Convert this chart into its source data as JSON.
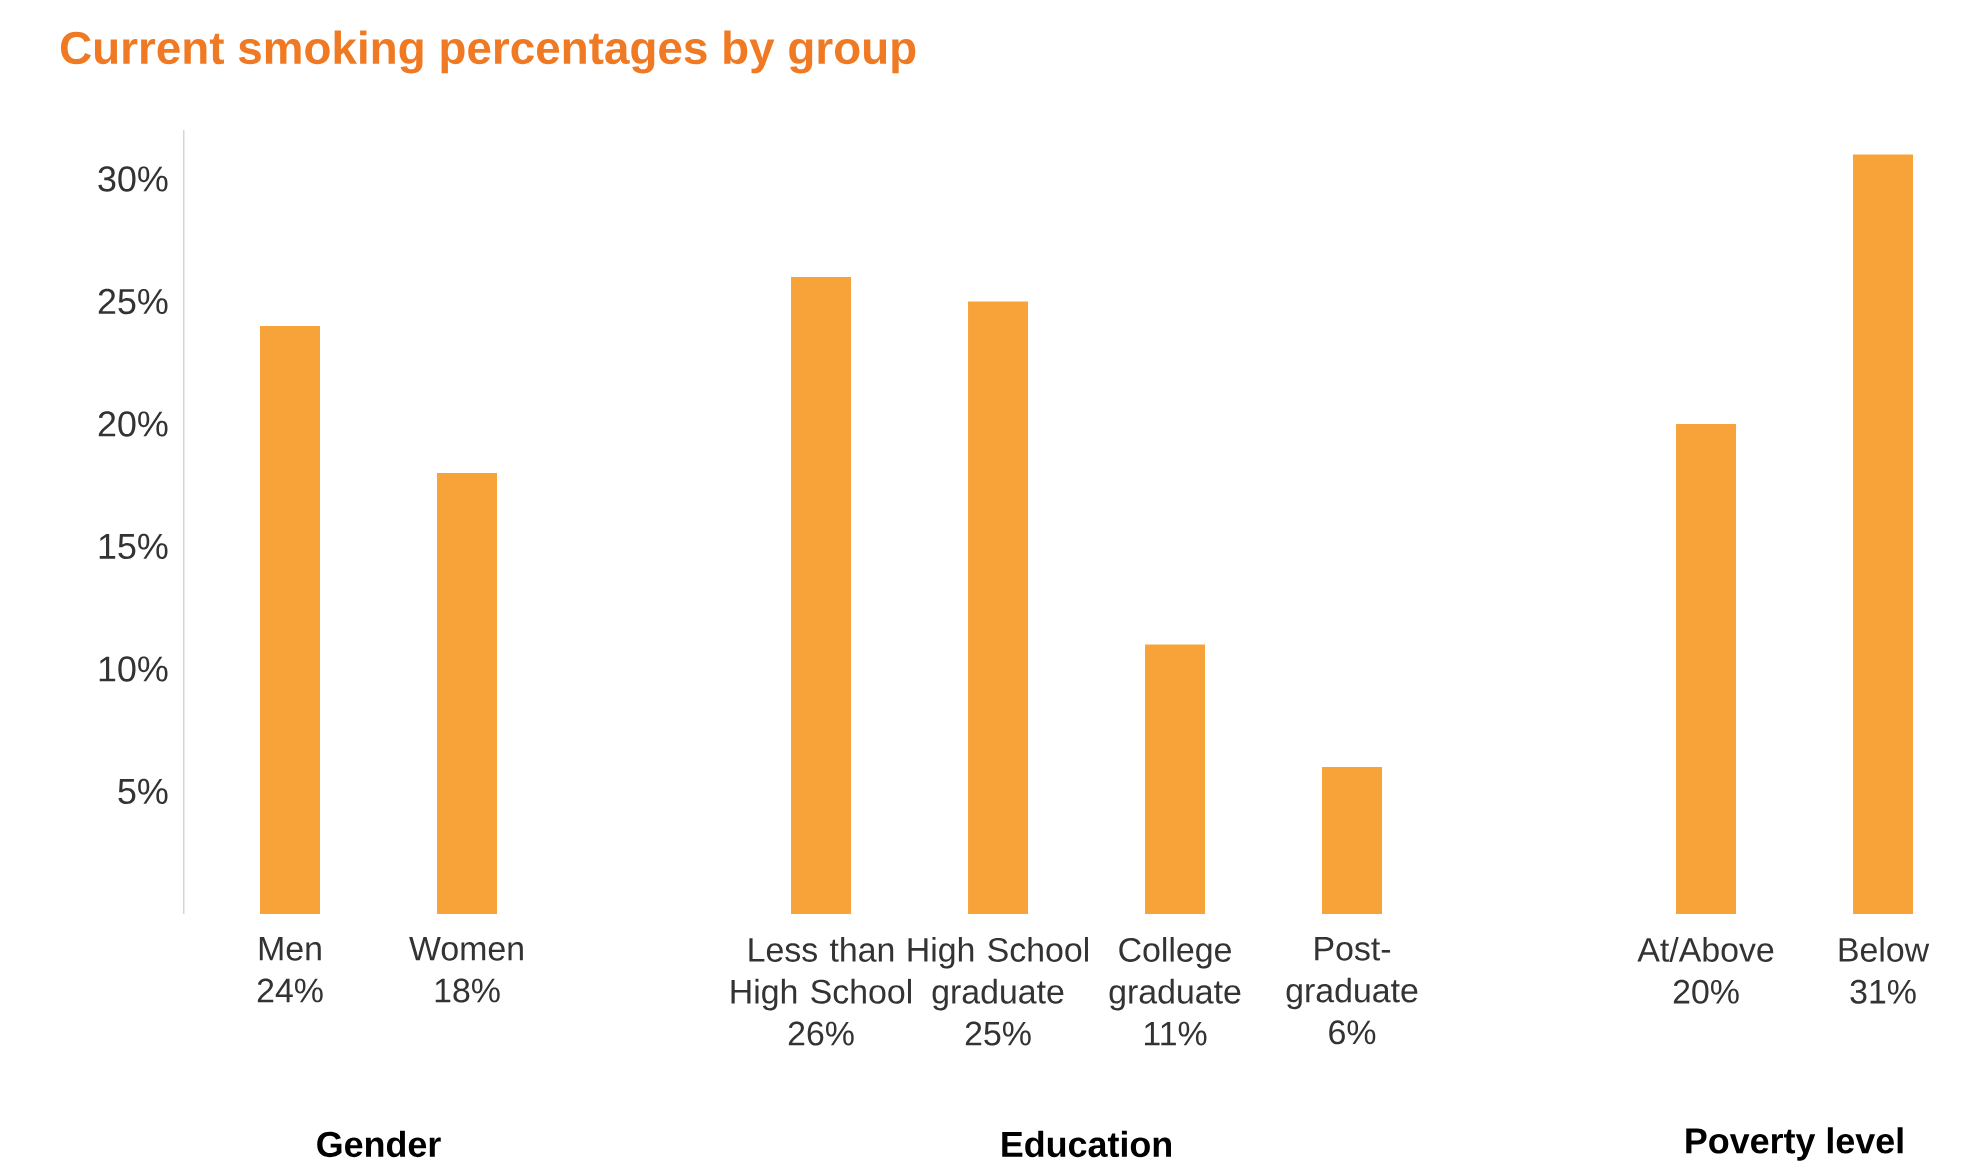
{
  "chart_data": {
    "type": "bar",
    "title": "Current smoking percentages by group",
    "categories": [
      "Men",
      "Women",
      null,
      "Less than High School",
      "High School graduate",
      "College graduate",
      "Post-graduate",
      null,
      "At/Above",
      "Below"
    ],
    "values": [
      24,
      18,
      null,
      26,
      25,
      11,
      6,
      null,
      20,
      31
    ],
    "value_labels": [
      "24%",
      "18%",
      null,
      "26%",
      "25%",
      "11%",
      "6%",
      null,
      "20%",
      "31%"
    ],
    "color": "#f7a33a",
    "ylim": [
      0,
      32
    ],
    "yticks": [
      {
        "value": 5,
        "label": "5%"
      },
      {
        "value": 10,
        "label": "10%"
      },
      {
        "value": 15,
        "label": "15%"
      },
      {
        "value": 20,
        "label": "20%"
      },
      {
        "value": 25,
        "label": "25%"
      },
      {
        "value": 30,
        "label": "30%"
      }
    ],
    "annotations": [
      "Gender",
      "Education",
      "Poverty level"
    ]
  }
}
